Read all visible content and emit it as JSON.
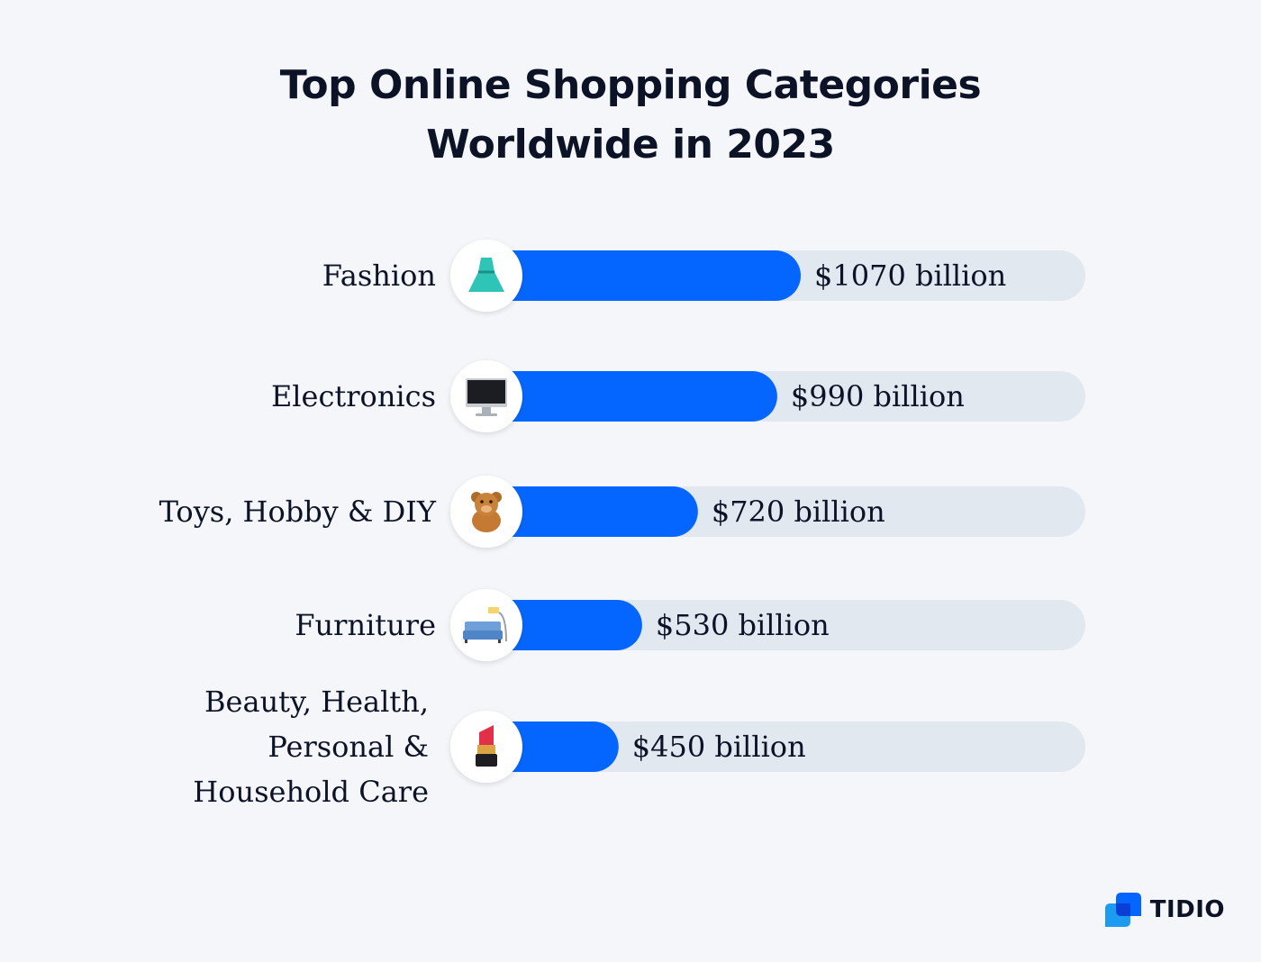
{
  "title_lines": [
    "Top Online Shopping Categories",
    "Worldwide in 2023"
  ],
  "brand": "TIDIO",
  "colors": {
    "bar": "#0566ff",
    "track": "#e2e8f0",
    "background": "#f4f6f9"
  },
  "chart_data": {
    "type": "bar",
    "orientation": "horizontal",
    "title": "Top Online Shopping Categories Worldwide in 2023",
    "categories": [
      [
        "Fashion"
      ],
      [
        "Electronics"
      ],
      [
        "Toys, Hobby & DIY"
      ],
      [
        "Furniture"
      ],
      [
        "Beauty, Health,",
        "Personal &",
        "Household Care"
      ]
    ],
    "values": [
      1070,
      990,
      720,
      530,
      450
    ],
    "value_labels": [
      "$1070 billion",
      "$990 billion",
      "$720 billion",
      "$530 billion",
      "$450 billion"
    ],
    "icons": [
      "dress-icon",
      "computer-icon",
      "teddy-bear-icon",
      "couch-and-lamp-icon",
      "lipstick-icon"
    ],
    "grid": false,
    "legend": "none"
  }
}
